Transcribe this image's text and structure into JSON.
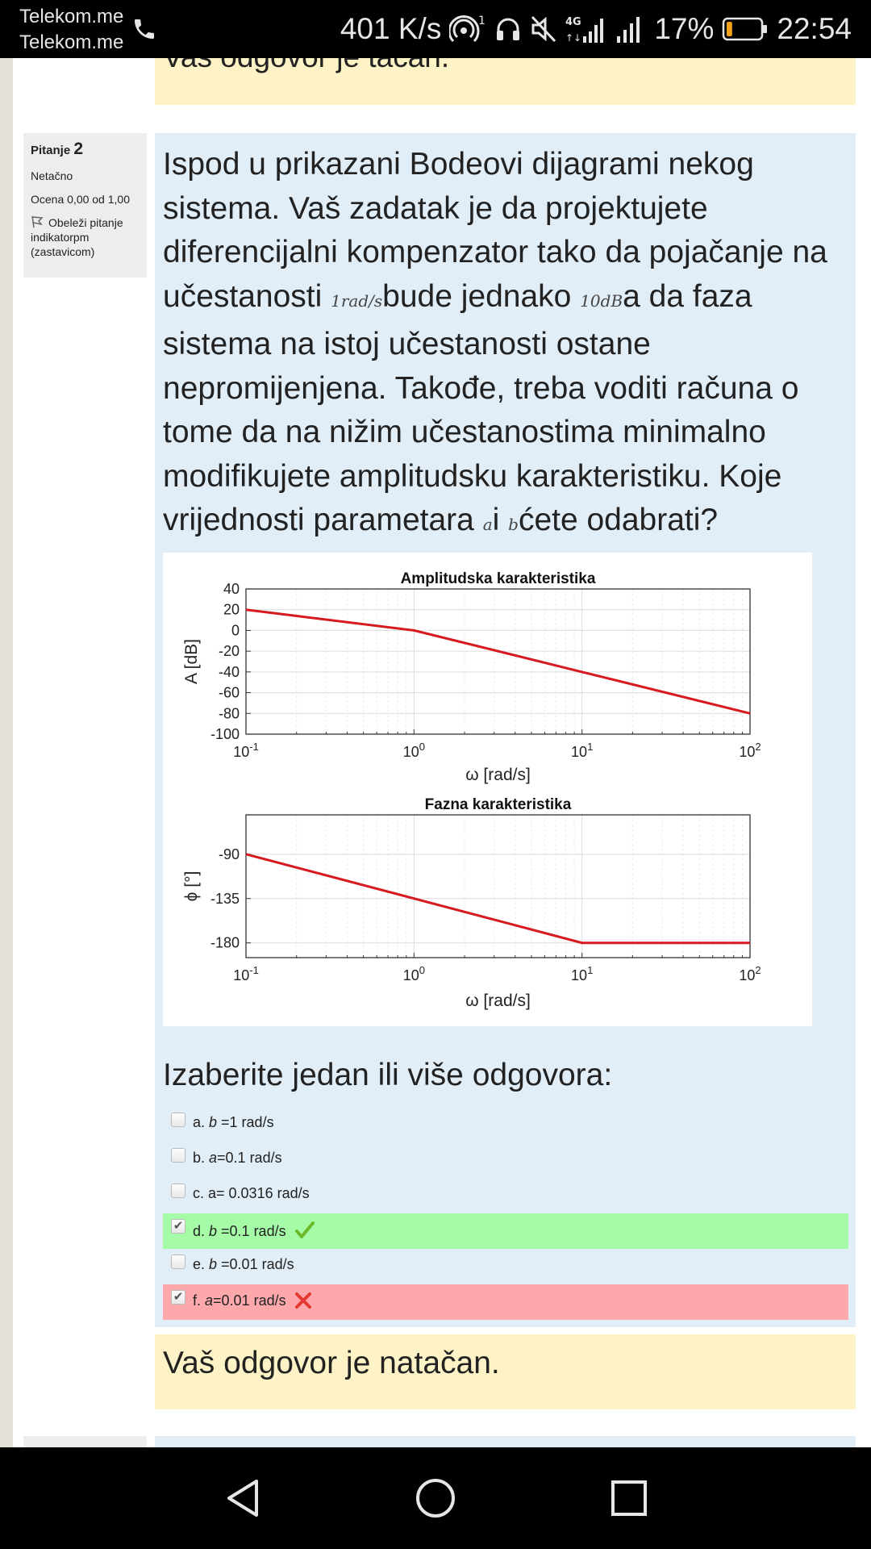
{
  "status_bar": {
    "carrier_line_1": "Telekom.me",
    "carrier_line_2": "Telekom.me",
    "network_speed": "401 K/s",
    "battery_percent": "17%",
    "battery_level": 0.17,
    "time": "22:54",
    "icons": [
      "phone-icon",
      "hotspot-icon",
      "headset-icon",
      "mute-icon",
      "4g-signal-icon",
      "signal-icon",
      "battery-icon"
    ]
  },
  "previous_feedback": "Vaš odgovor je tačan.",
  "question_info": {
    "label": "Pitanje",
    "number": "2",
    "state": "Netačno",
    "grade": "Ocena 0,00 od 1,00",
    "flag_label": "Obeleži pitanje indikatorpm (zastavicom)"
  },
  "question": {
    "text_1": "Ispod u prikazani Bodeovi dijagrami nekog sistema. Vaš zadatak je da projektujete diferencijalni kompenzator tako da pojačanje na učestanosti ",
    "math_1": "1rad/s",
    "text_2": "bude jednako ",
    "math_2": "10dB",
    "text_3": "a da faza sistema na istoj učestanosti ostane nepromijenjena. Takođe, treba voditi računa o tome da na nižim učestanostima minimalno modifikujete amplitudsku karakteristiku. Koje vrijednosti parametara ",
    "math_3": "a",
    "text_4": "i ",
    "math_4": "b",
    "text_5": "ćete odabrati?"
  },
  "chart_data": [
    {
      "type": "line",
      "title": "Amplitudska karakteristika",
      "xlabel": "ω [rad/s]",
      "ylabel": "A [dB]",
      "x_scale": "log",
      "xlim": [
        0.1,
        100
      ],
      "ylim": [
        -100,
        40
      ],
      "xticks": [
        "10^-1",
        "10^0",
        "10^1",
        "10^2"
      ],
      "yticks": [
        "40",
        "20",
        "0",
        "-20",
        "-40",
        "-60",
        "-80",
        "-100"
      ],
      "grid": true,
      "series": [
        {
          "x": [
            0.1,
            1,
            10,
            100
          ],
          "y": [
            20,
            0,
            -40,
            -80
          ],
          "color": "#d71920"
        }
      ]
    },
    {
      "type": "line",
      "title": "Fazna karakteristika",
      "xlabel": "ω [rad/s]",
      "ylabel": "ϕ [°]",
      "x_scale": "log",
      "xlim": [
        0.1,
        100
      ],
      "ylim": [
        -195,
        -50
      ],
      "xticks": [
        "10^-1",
        "10^0",
        "10^1",
        "10^2"
      ],
      "yticks": [
        "-90",
        "-135",
        "-180"
      ],
      "grid": true,
      "series": [
        {
          "x": [
            0.1,
            10,
            100
          ],
          "y": [
            -90,
            -180,
            -180
          ],
          "color": "#d71920"
        }
      ]
    }
  ],
  "answers_prompt": "Izaberite jedan ili više odgovora:",
  "answers": [
    {
      "letter": "a.",
      "var": "b",
      "text": " =1 rad/s",
      "checked": false,
      "state": "none"
    },
    {
      "letter": "b.",
      "var": "a",
      "text": "=0.1 rad/s",
      "checked": false,
      "state": "none"
    },
    {
      "letter": "c.",
      "var": "",
      "text": "a= 0.0316 rad/s",
      "checked": false,
      "state": "none"
    },
    {
      "letter": "d.",
      "var": "b",
      "text": " =0.1 rad/s",
      "checked": true,
      "state": "correct"
    },
    {
      "letter": "e.",
      "var": "b",
      "text": " =0.01 rad/s",
      "checked": false,
      "state": "none"
    },
    {
      "letter": "f.",
      "var": "a",
      "text": "=0.01 rad/s",
      "checked": true,
      "state": "incorrect"
    }
  ],
  "feedback": "Vaš odgovor je natačan.",
  "nav_bar": {
    "icons": [
      "back-icon",
      "home-icon",
      "recents-icon"
    ]
  },
  "colors": {
    "status_bar": "#000000",
    "question_bg": "#e1edf7",
    "feedback_bg": "#fdf3c6",
    "info_bg": "#ededed",
    "correct_bg": "#a6fba6",
    "incorrect_bg": "#fda8ab",
    "plot_line": "#d71920"
  }
}
